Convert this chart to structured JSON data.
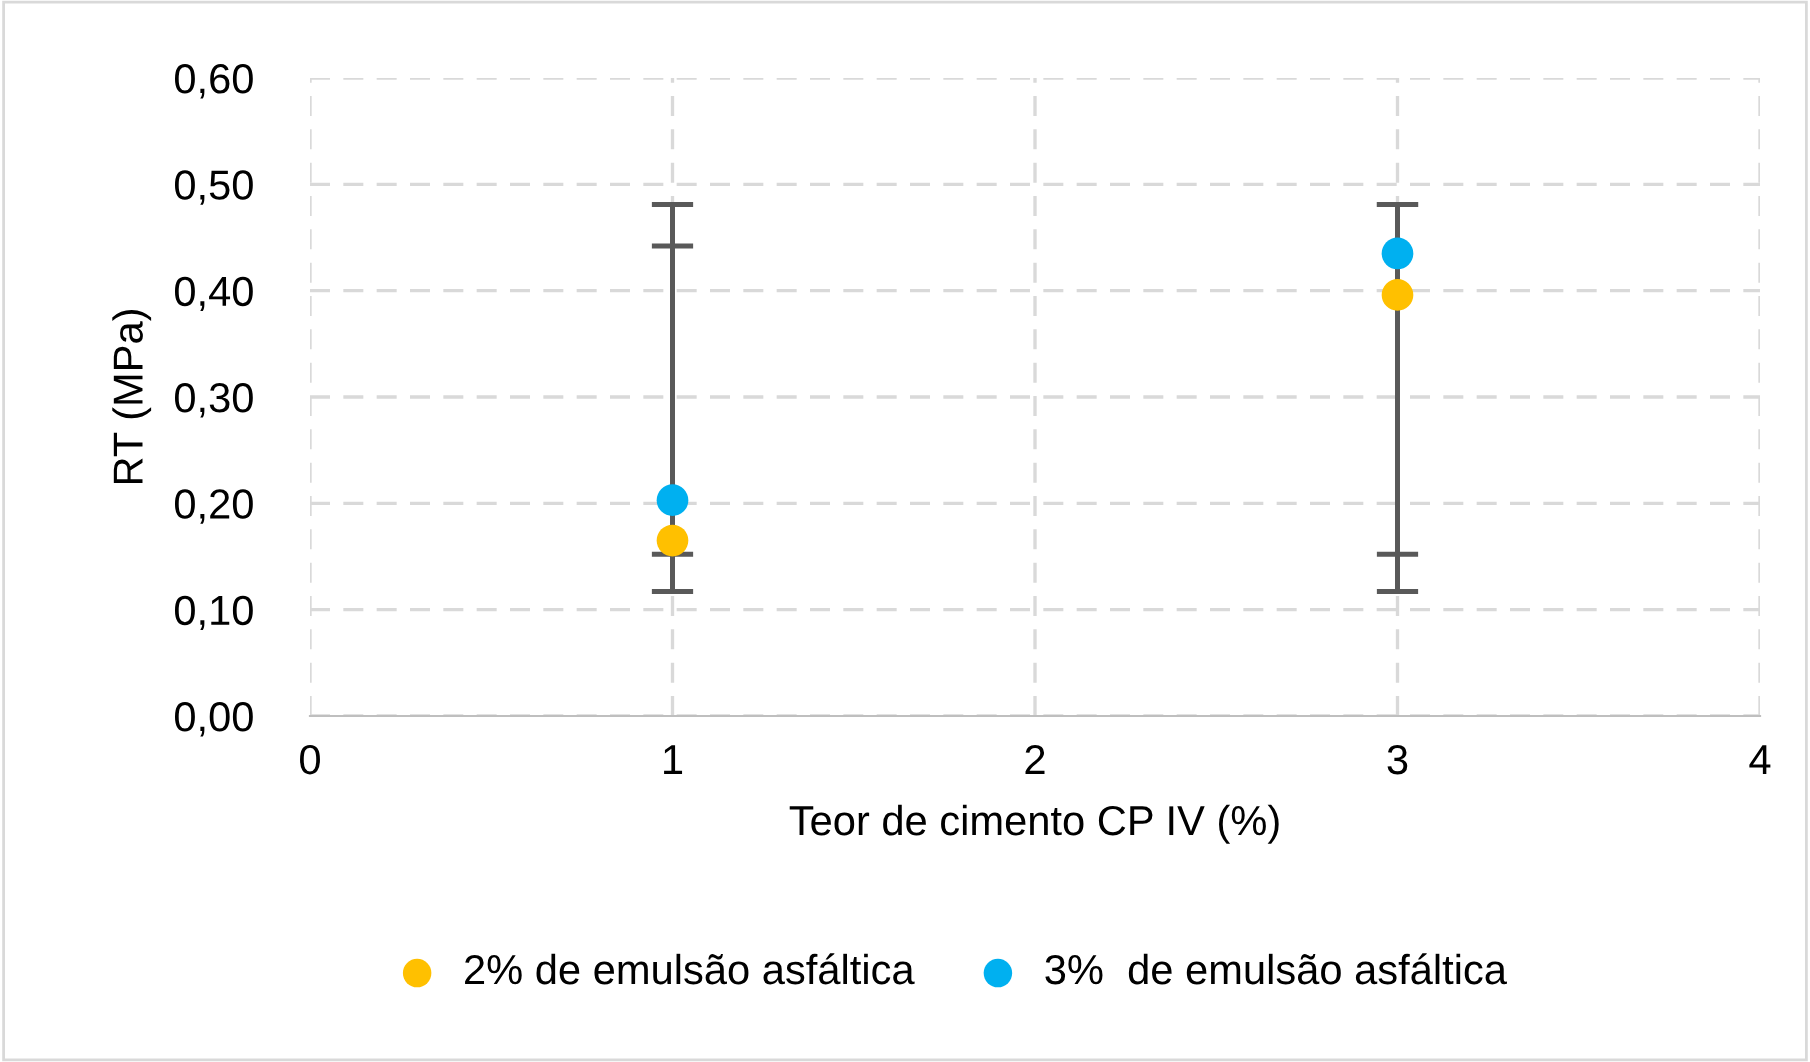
{
  "chart_data": {
    "type": "scatter",
    "xlabel": "Teor de cimento CP IV (%)",
    "ylabel": "RT (MPa)",
    "x": [
      1,
      3
    ],
    "series": [
      {
        "name": "2% de emulsão asfáltica",
        "color": "#ffc000",
        "values": [
          0.165,
          0.396
        ],
        "errors": [
          [
            0.152,
            0.442
          ],
          [
            0.152,
            0.481
          ]
        ]
      },
      {
        "name": "3%  de emulsão asfáltica",
        "color": "#00b0f0",
        "values": [
          0.203,
          0.435
        ],
        "errors": [
          [
            0.117,
            0.481
          ],
          [
            0.117,
            0.481
          ]
        ]
      }
    ],
    "xlim": [
      0,
      4
    ],
    "xticks": [
      0,
      1,
      2,
      3,
      4
    ],
    "ylim": [
      0,
      0.6
    ],
    "yticks": [
      {
        "value": 0,
        "label": "0,00"
      },
      {
        "value": 0.1,
        "label": "0,10"
      },
      {
        "value": 0.2,
        "label": "0,20"
      },
      {
        "value": 0.3,
        "label": "0,30"
      },
      {
        "value": 0.4,
        "label": "0,40"
      },
      {
        "value": 0.5,
        "label": "0,50"
      },
      {
        "value": 0.6,
        "label": "0,60"
      }
    ],
    "grid": true,
    "legend": "bottom",
    "marker": "circle"
  }
}
